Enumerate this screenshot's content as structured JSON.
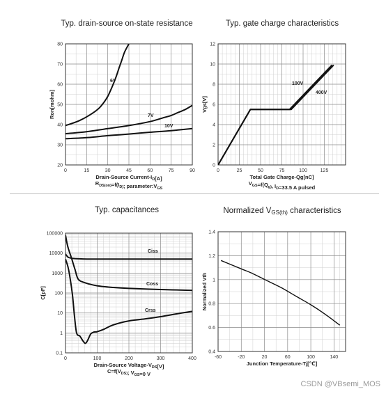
{
  "watermark": "CSDN @VBsemi_MOS",
  "chart_data": [
    {
      "id": "rdson",
      "type": "line",
      "title": "Typ. drain-source on-state resistance",
      "xlabel": "Drain-Source Current-I_D[A]",
      "caption": "R_DS(on)=f(I_D); parameter:V_GS",
      "ylabel": "Ron[mohm]",
      "xlim": [
        0,
        90
      ],
      "ylim": [
        20,
        80
      ],
      "xticks": [
        0,
        15,
        30,
        45,
        60,
        75,
        90
      ],
      "yticks": [
        20,
        30,
        40,
        50,
        60,
        70,
        80
      ],
      "grid": true,
      "series": [
        {
          "name": "6V",
          "x": [
            0,
            10,
            20,
            25,
            30,
            35,
            38,
            40,
            42,
            45
          ],
          "y": [
            39.5,
            42,
            46,
            49,
            54,
            62,
            68,
            72,
            76,
            80
          ]
        },
        {
          "name": "7V",
          "x": [
            0,
            15,
            30,
            45,
            60,
            70,
            75,
            80,
            85,
            90
          ],
          "y": [
            35.5,
            36.5,
            38,
            39.5,
            41.5,
            43.5,
            44.5,
            46,
            47.5,
            49.5
          ]
        },
        {
          "name": "10V",
          "x": [
            0,
            15,
            30,
            45,
            60,
            75,
            90
          ],
          "y": [
            33,
            33.5,
            34.5,
            35.3,
            36.2,
            37,
            38
          ]
        }
      ],
      "annotations": [
        "6V",
        "7V",
        "10V"
      ]
    },
    {
      "id": "gate",
      "type": "line",
      "title": "Typ. gate charge characteristics",
      "xlabel": "Total Gate Charge-Qg[nC]",
      "caption": "V_GS=f(Q_g), I_D=33.5 A  pulsed",
      "ylabel": "Vgs[V]",
      "xlim": [
        0,
        150
      ],
      "ylim": [
        0,
        12
      ],
      "xticks": [
        0,
        25,
        50,
        75,
        100,
        125
      ],
      "yticks": [
        0,
        2,
        4,
        6,
        8,
        10,
        12
      ],
      "grid": true,
      "series": [
        {
          "name": "100V",
          "x": [
            0,
            38,
            84,
            134
          ],
          "y": [
            0,
            5.5,
            5.5,
            9.9
          ]
        },
        {
          "name": "400V",
          "x": [
            0,
            38,
            86,
            136
          ],
          "y": [
            0,
            5.5,
            5.5,
            9.9
          ]
        }
      ],
      "annotations": [
        "100V",
        "400V"
      ]
    },
    {
      "id": "cap",
      "type": "line",
      "title": "Typ. capacitances",
      "xlabel": "Drain-Source Voltage-V_DS[V]",
      "caption": "C=f(V_DS); V_GS=0 V",
      "ylabel": "C[pF]",
      "xlim": [
        0,
        400
      ],
      "ylim": [
        0.1,
        100000
      ],
      "yscale": "log",
      "xticks": [
        0,
        100,
        200,
        300,
        400
      ],
      "yticks": [
        0.1,
        1,
        10,
        100,
        1000,
        10000,
        100000
      ],
      "ytick_labels": [
        "0.1",
        "1",
        "10",
        "100",
        "1000",
        "10000",
        "100000"
      ],
      "grid": true,
      "series": [
        {
          "name": "Ciss",
          "x": [
            0,
            5,
            10,
            20,
            30,
            50,
            100,
            200,
            400
          ],
          "y": [
            9000,
            7000,
            6000,
            5500,
            5300,
            5100,
            5000,
            5000,
            5000
          ]
        },
        {
          "name": "Coss",
          "x": [
            0,
            5,
            10,
            20,
            30,
            40,
            60,
            100,
            150,
            200,
            300,
            400
          ],
          "y": [
            80000,
            30000,
            15000,
            5000,
            1500,
            500,
            330,
            230,
            190,
            170,
            150,
            135
          ]
        },
        {
          "name": "Crss",
          "x": [
            0,
            8,
            15,
            22,
            28,
            35,
            45,
            55,
            62,
            67,
            72,
            80,
            90,
            100,
            120,
            150,
            200,
            250,
            300,
            350,
            400
          ],
          "y": [
            5000,
            2000,
            500,
            80,
            8,
            1,
            0.7,
            0.4,
            0.3,
            0.35,
            0.5,
            0.9,
            1.1,
            1.15,
            1.5,
            2.5,
            4,
            5,
            6.5,
            9,
            12
          ]
        }
      ],
      "annotations": [
        "Ciss",
        "Coss",
        "Crss"
      ]
    },
    {
      "id": "vth",
      "type": "line",
      "title_main": "Normalized V",
      "title_sub": "GS(th)",
      "title_tail": " characteristics",
      "xlabel": "Junction Temperature-Tj[℃]",
      "ylabel": "Normalized Vth",
      "xlim": [
        -60,
        160
      ],
      "ylim": [
        0.4,
        1.4
      ],
      "xticks": [
        -60,
        -20,
        20,
        60,
        100,
        140
      ],
      "yticks": [
        0.4,
        0.6,
        0.8,
        1,
        1.2,
        1.4
      ],
      "grid": true,
      "series": [
        {
          "x": [
            -55,
            -20,
            0,
            25,
            50,
            75,
            100,
            125,
            150
          ],
          "y": [
            1.16,
            1.09,
            1.05,
            0.99,
            0.93,
            0.86,
            0.79,
            0.71,
            0.62
          ]
        }
      ]
    }
  ]
}
